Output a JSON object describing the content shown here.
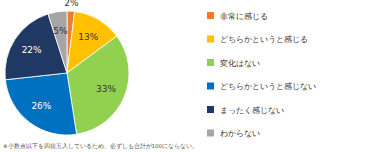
{
  "chart_data": {
    "type": "pie",
    "categories": [
      "非常に感じる",
      "どちらかというと感じる",
      "変化はない",
      "どちらかというと感じない",
      "まったく感じない",
      "わからない"
    ],
    "values": [
      2,
      13,
      33,
      26,
      22,
      5
    ],
    "value_labels": [
      "2%",
      "13%",
      "33%",
      "26%",
      "22%",
      "5%"
    ],
    "colors": [
      "#ed7d31",
      "#ffc000",
      "#92d050",
      "#0070c0",
      "#1f3864",
      "#a6a6a6"
    ],
    "data_labels": true,
    "legend": "right",
    "annotations": [
      "※小数点以下を四捨五入しているため、必ずしも合計が100にならない。"
    ]
  }
}
